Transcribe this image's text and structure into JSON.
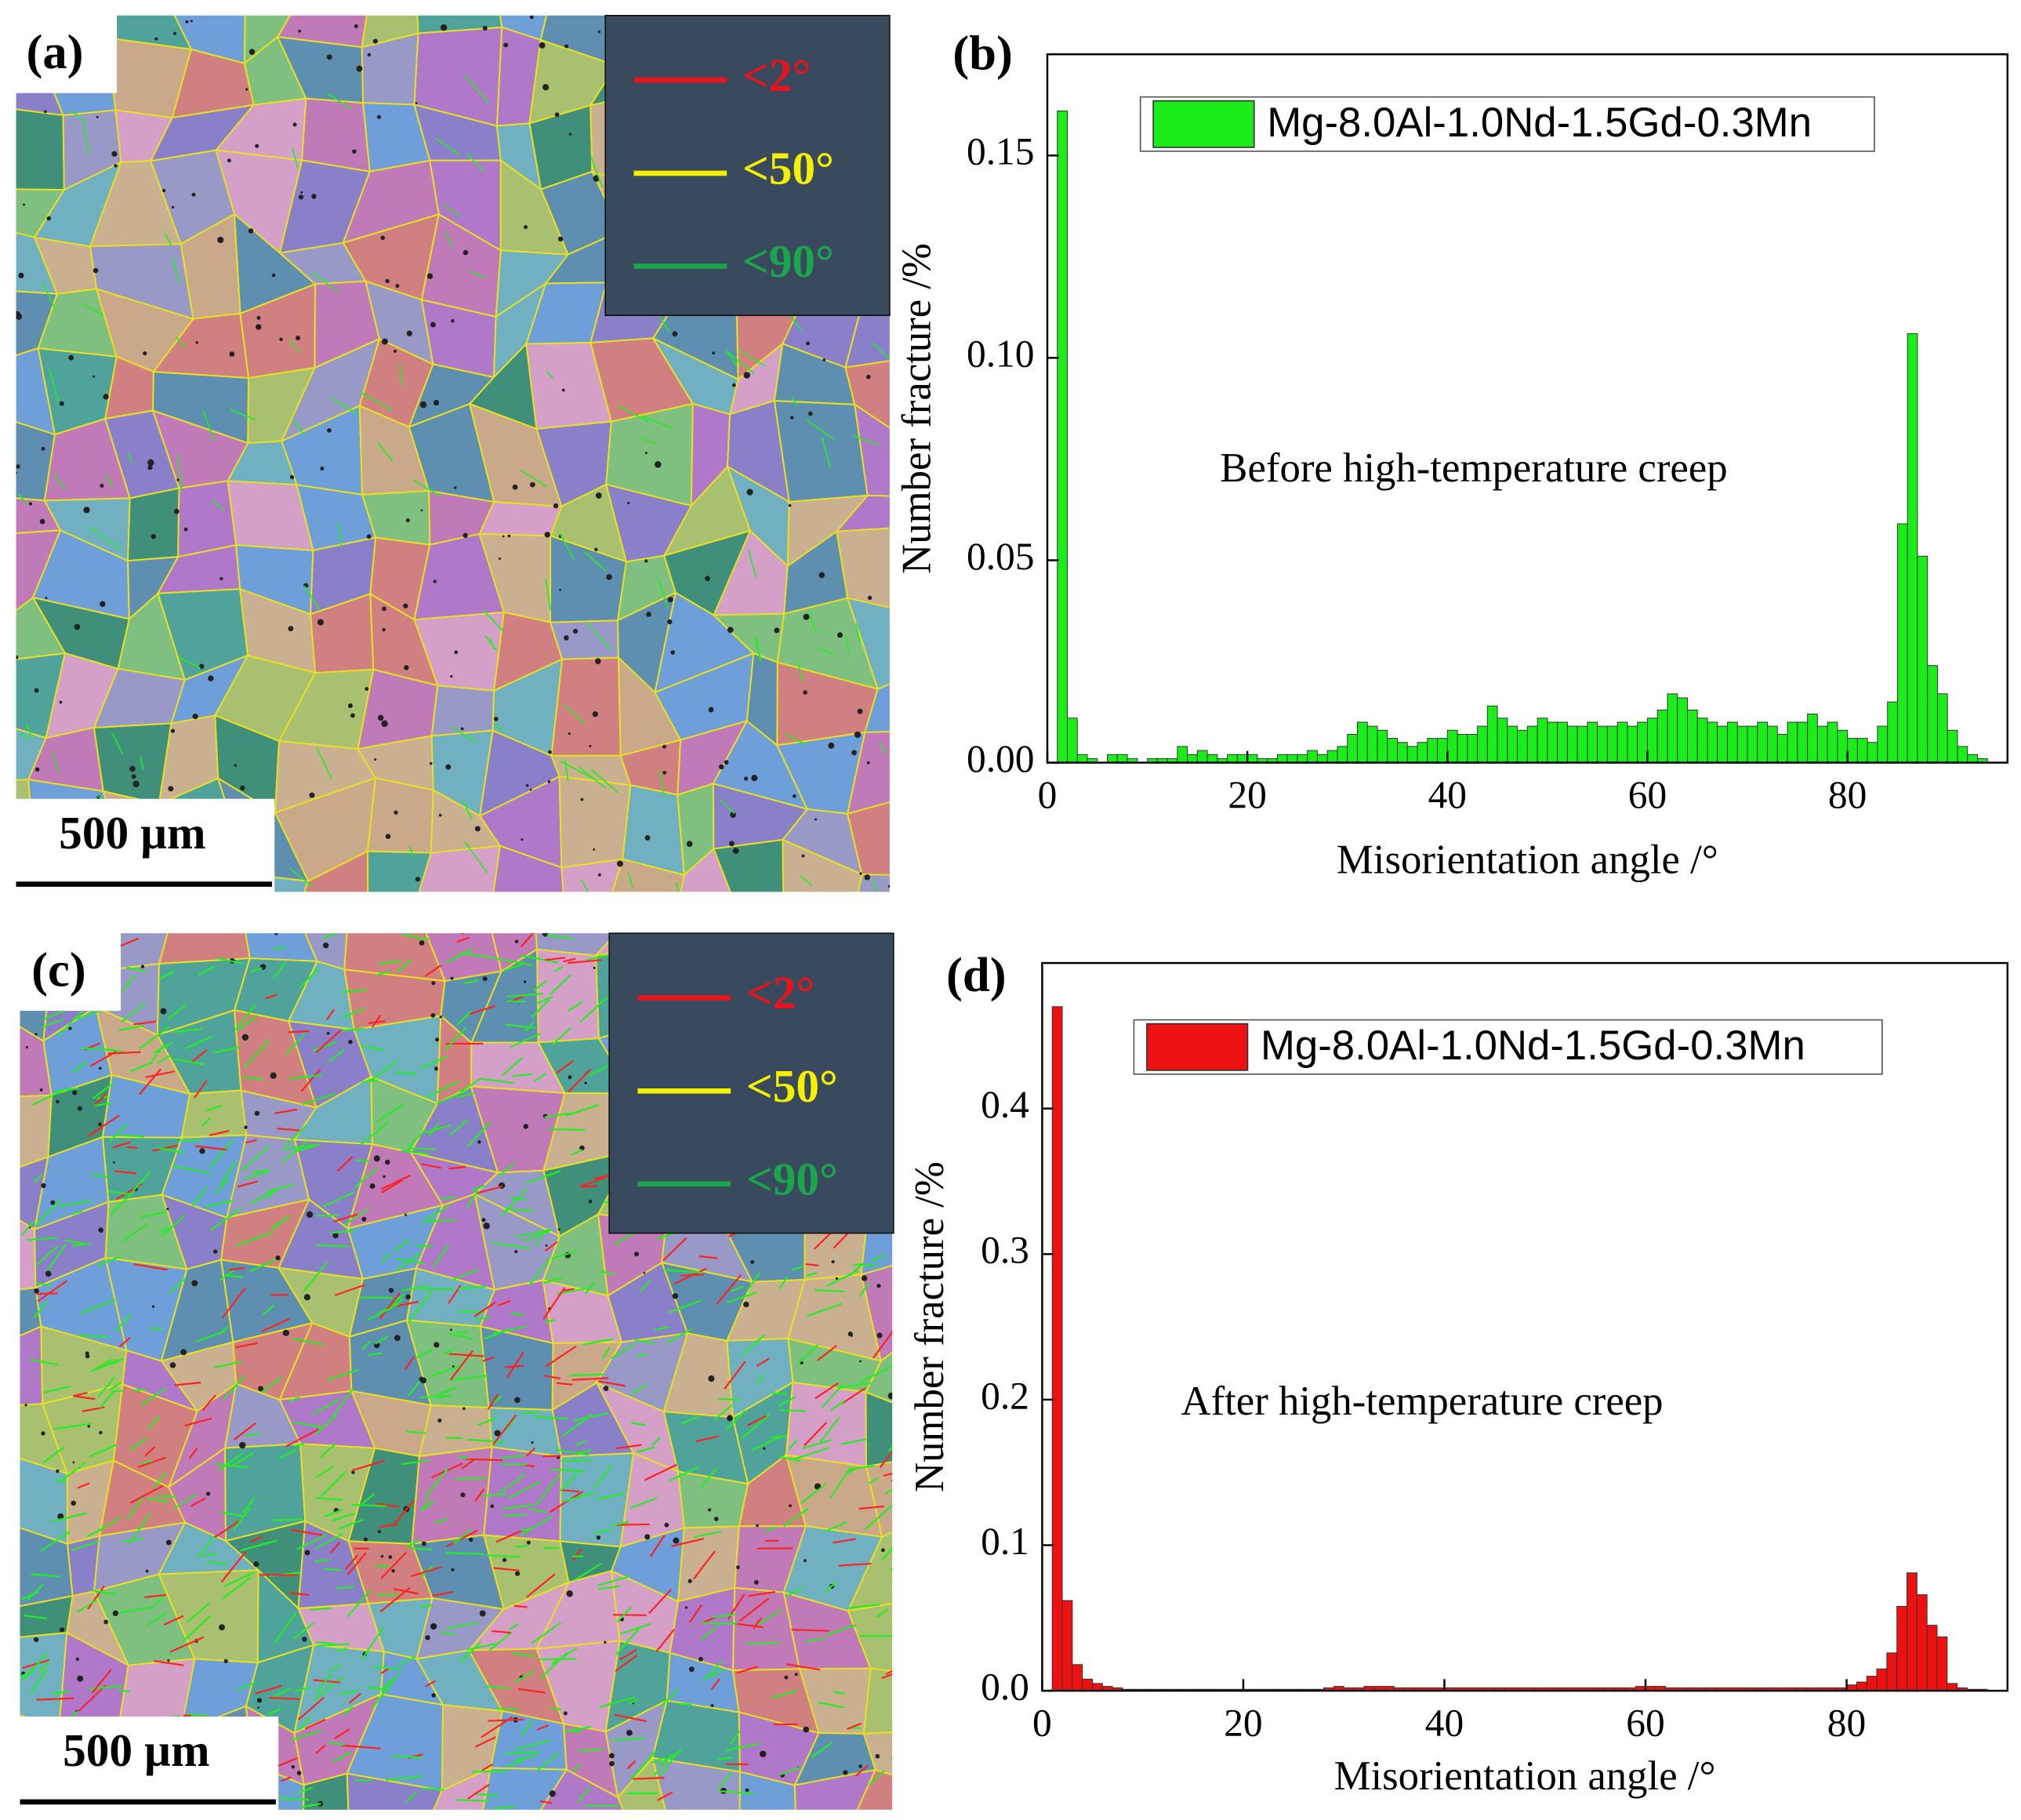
{
  "panels": [
    {
      "label": "(a)",
      "scale_bar": "500 µm",
      "legend": [
        {
          "text": "<2°",
          "color": "#e8141c"
        },
        {
          "text": "<50°",
          "color": "#f5f000"
        },
        {
          "text": "<90°",
          "color": "#1aa64a"
        }
      ]
    },
    {
      "label": "(c)",
      "scale_bar": "500 µm",
      "legend": [
        {
          "text": "<2°",
          "color": "#e8141c"
        },
        {
          "text": "<50°",
          "color": "#f5f000"
        },
        {
          "text": "<90°",
          "color": "#1aa64a"
        }
      ]
    }
  ],
  "chart_data": [
    {
      "type": "histogram",
      "panel_label": "(b)",
      "annotation": "Before high-temperature creep",
      "xlabel": "Misorientation angle /°",
      "ylabel": "Number fracture /%",
      "xlim": [
        0,
        96
      ],
      "ylim": [
        0,
        0.175
      ],
      "xticks": [
        0,
        20,
        40,
        60,
        80
      ],
      "yticks": [
        {
          "value": 0,
          "label": "0.00"
        },
        0.05,
        {
          "value": 0.1,
          "label": "0.10"
        },
        0.15
      ],
      "bins": [
        0,
        1,
        2,
        3,
        4,
        5,
        6,
        7,
        8,
        9,
        10,
        11,
        12,
        13,
        14,
        15,
        16,
        17,
        18,
        19,
        20,
        21,
        22,
        23,
        24,
        25,
        26,
        27,
        28,
        29,
        30,
        31,
        32,
        33,
        34,
        35,
        36,
        37,
        38,
        39,
        40,
        41,
        42,
        43,
        44,
        45,
        46,
        47,
        48,
        49,
        50,
        51,
        52,
        53,
        54,
        55,
        56,
        57,
        58,
        59,
        60,
        61,
        62,
        63,
        64,
        65,
        66,
        67,
        68,
        69,
        70,
        71,
        72,
        73,
        74,
        75,
        76,
        77,
        78,
        79,
        80,
        81,
        82,
        83,
        84,
        85,
        86,
        87,
        88,
        89,
        90,
        91,
        92,
        93,
        94
      ],
      "series": [
        {
          "name": "Mg-8.0Al-1.0Nd-1.5Gd-0.3Mn",
          "color": "#1aed1a",
          "values": [
            0,
            0.161,
            0.011,
            0.002,
            0.001,
            0,
            0.002,
            0.002,
            0.001,
            0,
            0.001,
            0.001,
            0.001,
            0.004,
            0.002,
            0.003,
            0.002,
            0.001,
            0.002,
            0.002,
            0.002,
            0.001,
            0.001,
            0.002,
            0.002,
            0.002,
            0.003,
            0.002,
            0.003,
            0.004,
            0.007,
            0.01,
            0.009,
            0.008,
            0.006,
            0.005,
            0.004,
            0.005,
            0.006,
            0.006,
            0.008,
            0.007,
            0.007,
            0.009,
            0.014,
            0.011,
            0.009,
            0.008,
            0.009,
            0.011,
            0.01,
            0.01,
            0.009,
            0.009,
            0.01,
            0.009,
            0.009,
            0.01,
            0.009,
            0.01,
            0.011,
            0.013,
            0.017,
            0.016,
            0.013,
            0.011,
            0.01,
            0.009,
            0.01,
            0.009,
            0.009,
            0.01,
            0.009,
            0.007,
            0.01,
            0.01,
            0.012,
            0.009,
            0.01,
            0.008,
            0.006,
            0.006,
            0.005,
            0.009,
            0.015,
            0.059,
            0.106,
            0.051,
            0.024,
            0.017,
            0.008,
            0.004,
            0.002,
            0.001
          ]
        }
      ]
    },
    {
      "type": "histogram",
      "panel_label": "(d)",
      "annotation": "After high-temperature creep",
      "xlabel": "Misorientation angle /°",
      "ylabel": "Number fracture /%",
      "xlim": [
        0,
        96
      ],
      "ylim": [
        0,
        0.5
      ],
      "xticks": [
        0,
        20,
        40,
        60,
        80
      ],
      "yticks": [
        {
          "value": 0,
          "label": "0.0"
        },
        0.1,
        0.2,
        0.3,
        0.4
      ],
      "bins": [
        0,
        1,
        2,
        3,
        4,
        5,
        6,
        7,
        8,
        9,
        10,
        11,
        12,
        13,
        14,
        15,
        16,
        17,
        18,
        19,
        20,
        21,
        22,
        23,
        24,
        25,
        26,
        27,
        28,
        29,
        30,
        31,
        32,
        33,
        34,
        35,
        36,
        37,
        38,
        39,
        40,
        41,
        42,
        43,
        44,
        45,
        46,
        47,
        48,
        49,
        50,
        51,
        52,
        53,
        54,
        55,
        56,
        57,
        58,
        59,
        60,
        61,
        62,
        63,
        64,
        65,
        66,
        67,
        68,
        69,
        70,
        71,
        72,
        73,
        74,
        75,
        76,
        77,
        78,
        79,
        80,
        81,
        82,
        83,
        84,
        85,
        86,
        87,
        88,
        89,
        90,
        91,
        92,
        93,
        94
      ],
      "series": [
        {
          "name": "Mg-8.0Al-1.0Nd-1.5Gd-0.3Mn",
          "color": "#ee1111",
          "values": [
            0,
            0.47,
            0.062,
            0.018,
            0.008,
            0.005,
            0.003,
            0.002,
            0.001,
            0.001,
            0.001,
            0.001,
            0.001,
            0.001,
            0.001,
            0.001,
            0.001,
            0.001,
            0.001,
            0.001,
            0.001,
            0.001,
            0.001,
            0.001,
            0.001,
            0.001,
            0.001,
            0.001,
            0.002,
            0.003,
            0.002,
            0.002,
            0.003,
            0.003,
            0.003,
            0.002,
            0.002,
            0.002,
            0.002,
            0.002,
            0.002,
            0.002,
            0.002,
            0.002,
            0.002,
            0.002,
            0.002,
            0.002,
            0.002,
            0.002,
            0.002,
            0.002,
            0.002,
            0.002,
            0.002,
            0.002,
            0.002,
            0.002,
            0.002,
            0.003,
            0.003,
            0.003,
            0.002,
            0.002,
            0.002,
            0.002,
            0.002,
            0.002,
            0.002,
            0.002,
            0.002,
            0.002,
            0.002,
            0.002,
            0.002,
            0.002,
            0.002,
            0.002,
            0.002,
            0.002,
            0.004,
            0.006,
            0.01,
            0.015,
            0.026,
            0.058,
            0.081,
            0.066,
            0.045,
            0.037,
            0.005,
            0.002,
            0.001,
            0.001
          ]
        }
      ]
    }
  ]
}
